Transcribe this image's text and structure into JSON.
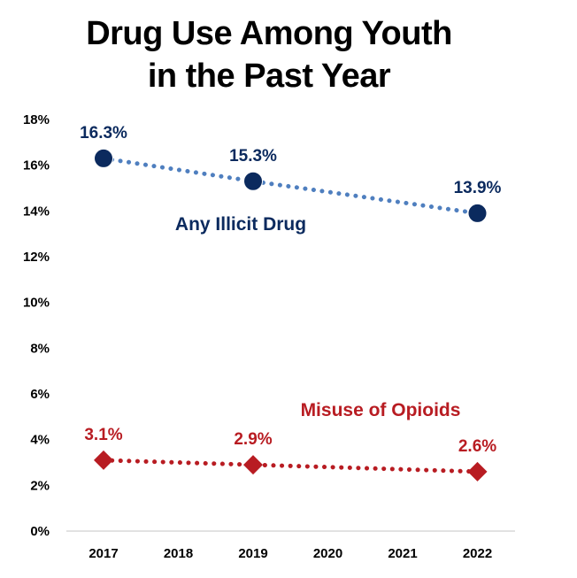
{
  "chart_data": {
    "type": "line",
    "title": [
      "Drug Use Among Youth",
      "in the Past Year"
    ],
    "categories": [
      "2017",
      "2018",
      "2019",
      "2020",
      "2021",
      "2022"
    ],
    "y_ticks": [
      "0%",
      "2%",
      "4%",
      "6%",
      "8%",
      "10%",
      "12%",
      "14%",
      "16%",
      "18%"
    ],
    "ylim": [
      0,
      18
    ],
    "grid": false,
    "series": [
      {
        "name": "Any Illicit Drug",
        "x": [
          "2017",
          "2019",
          "2022"
        ],
        "values": [
          16.3,
          15.3,
          13.9
        ],
        "labels": [
          "16.3%",
          "15.3%",
          "13.9%"
        ],
        "marker": "circle",
        "marker_color": "#0b2a5e",
        "line_color": "#4f7fbf",
        "label_color": "#0b2a5e"
      },
      {
        "name": "Misuse of Opioids",
        "x": [
          "2017",
          "2019",
          "2022"
        ],
        "values": [
          3.1,
          2.9,
          2.6
        ],
        "labels": [
          "3.1%",
          "2.9%",
          "2.6%"
        ],
        "marker": "diamond",
        "marker_color": "#b81c22",
        "line_color": "#b81c22",
        "label_color": "#b81c22"
      }
    ]
  }
}
